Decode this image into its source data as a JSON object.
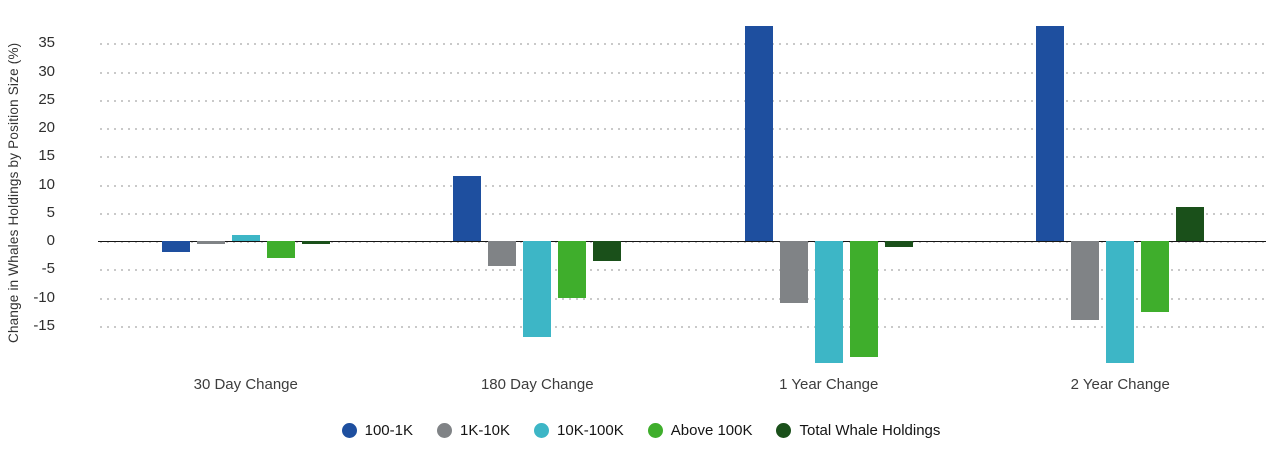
{
  "chart_data": {
    "type": "bar",
    "title": "",
    "xlabel": "",
    "ylabel": "Change in Whales Holdings by Position Size (%)",
    "categories": [
      "30 Day Change",
      "180 Day Change",
      "1 Year Change",
      "2 Year Change"
    ],
    "series": [
      {
        "name": "100-1K",
        "color": "#1e4f9f",
        "values": [
          -2,
          11.5,
          38,
          38
        ]
      },
      {
        "name": "1K-10K",
        "color": "#808386",
        "values": [
          -0.5,
          -4.5,
          -11,
          -14
        ]
      },
      {
        "name": "10K-100K",
        "color": "#3db6c6",
        "values": [
          1,
          -17,
          -21.5,
          -21.5
        ]
      },
      {
        "name": "Above 100K",
        "color": "#3fae2c",
        "values": [
          -3,
          -10,
          -20.5,
          -12.5
        ]
      },
      {
        "name": "Total Whale Holdings",
        "color": "#1a501a",
        "values": [
          -0.5,
          -3.5,
          -1,
          6
        ]
      }
    ],
    "yticks": [
      35,
      30,
      25,
      20,
      15,
      10,
      5,
      0,
      -5,
      -10,
      -15
    ],
    "ylim": [
      -23,
      40
    ],
    "grid": "dotted horizontal",
    "legend_position": "bottom",
    "axis_color": "#151515",
    "gridline_color": "#c9c9c9",
    "background_color": "#ffffff"
  }
}
